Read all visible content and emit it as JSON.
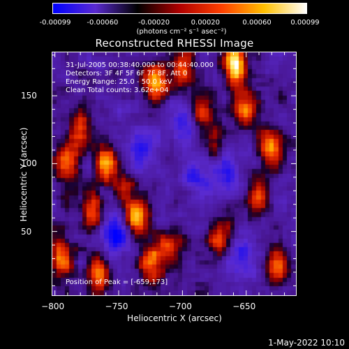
{
  "colorbar": {
    "ticks": [
      {
        "value": -0.00099,
        "label": "-0.00099"
      },
      {
        "value": -0.0006,
        "label": "-0.00060"
      },
      {
        "value": -0.0002,
        "label": "-0.00020"
      },
      {
        "value": 0.0002,
        "label": "0.00020"
      },
      {
        "value": 0.0006,
        "label": "0.00060"
      },
      {
        "value": 0.00099,
        "label": "0.00099"
      }
    ],
    "range": [
      -0.00099,
      0.00099
    ],
    "unit": "(photons cm⁻² s⁻¹ asec⁻²)",
    "colors": [
      "#0000ff",
      "#5a2ad0",
      "#000000",
      "#b00000",
      "#ff4000",
      "#ffc000",
      "#ffffff"
    ]
  },
  "chart_data": {
    "type": "heatmap",
    "title": "Reconstructed RHESSI Image",
    "xlabel": "Heliocentric X (arcsec)",
    "ylabel": "Heliocentric Y (arcsec)",
    "xlim": [
      -802,
      -611
    ],
    "ylim": [
      3,
      182
    ],
    "xticks": [
      -800,
      -750,
      -700,
      -650
    ],
    "yticks": [
      50,
      100,
      150
    ],
    "annotations": {
      "time": "31-Jul-2005 00:38:40.000 to 00:44:40.000",
      "detectors": "Detectors: 3F 4F 5F 6F 7F 8F, Att 0",
      "energy": "Energy Range: 25.0 - 50.0 keV",
      "clean": "Clean     Total counts: 3.62e+04",
      "peak": "Position of Peak = [-659,173]"
    },
    "peak": {
      "x": -659,
      "y": 173
    },
    "bright_regions": [
      {
        "x": -795,
        "y": 30,
        "strength": 0.8
      },
      {
        "x": -790,
        "y": 100,
        "strength": 0.75
      },
      {
        "x": -780,
        "y": 125,
        "strength": 0.55
      },
      {
        "x": -770,
        "y": 65,
        "strength": 0.6
      },
      {
        "x": -765,
        "y": 20,
        "strength": 0.65
      },
      {
        "x": -760,
        "y": 100,
        "strength": 0.7
      },
      {
        "x": -745,
        "y": 80,
        "strength": 0.45
      },
      {
        "x": -735,
        "y": 60,
        "strength": 0.75
      },
      {
        "x": -725,
        "y": 25,
        "strength": 0.7
      },
      {
        "x": -720,
        "y": 160,
        "strength": 0.9
      },
      {
        "x": -710,
        "y": 35,
        "strength": 0.55
      },
      {
        "x": -700,
        "y": 170,
        "strength": 0.6
      },
      {
        "x": -685,
        "y": 140,
        "strength": 0.55
      },
      {
        "x": -675,
        "y": 115,
        "strength": 0.5
      },
      {
        "x": -670,
        "y": 45,
        "strength": 0.6
      },
      {
        "x": -659,
        "y": 173,
        "strength": 1.0
      },
      {
        "x": -650,
        "y": 140,
        "strength": 0.7
      },
      {
        "x": -640,
        "y": 75,
        "strength": 0.55
      },
      {
        "x": -630,
        "y": 110,
        "strength": 0.75
      },
      {
        "x": -625,
        "y": 25,
        "strength": 0.6
      }
    ],
    "dark_regions": [
      {
        "x": -752,
        "y": 45,
        "strength": 0.85
      },
      {
        "x": -730,
        "y": 110,
        "strength": 0.6
      },
      {
        "x": -690,
        "y": 90,
        "strength": 0.55
      },
      {
        "x": -700,
        "y": 130,
        "strength": 0.5
      },
      {
        "x": -665,
        "y": 95,
        "strength": 0.6
      },
      {
        "x": -655,
        "y": 30,
        "strength": 0.5
      }
    ]
  },
  "footer": {
    "timestamp": "1-May-2022 10:10"
  }
}
